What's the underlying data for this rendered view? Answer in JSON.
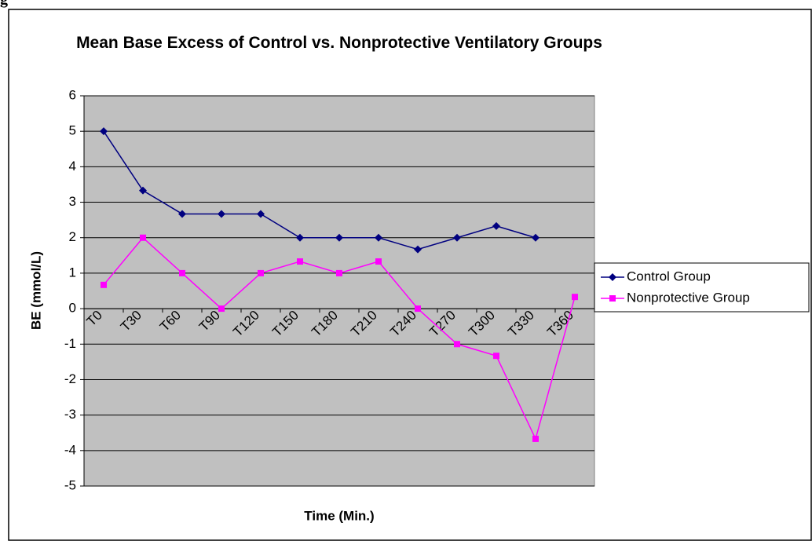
{
  "figure_label": "g",
  "chart_data": {
    "type": "line",
    "title": "Mean Base Excess of Control vs. Nonprotective Ventilatory Groups",
    "xlabel": "Time (Min.)",
    "ylabel": "BE (mmol/L)",
    "categories": [
      "T0",
      "T30",
      "T60",
      "T90",
      "T120",
      "T150",
      "T180",
      "T210",
      "T240",
      "T270",
      "T300",
      "T330",
      "T360"
    ],
    "series": [
      {
        "name": "Control Group",
        "color": "#000080",
        "marker": "diamond",
        "values": [
          5,
          3.33,
          2.67,
          2.67,
          2.67,
          2,
          2,
          2,
          1.67,
          2,
          2.33,
          2,
          null
        ]
      },
      {
        "name": "Nonprotective Group",
        "color": "#ff00ff",
        "marker": "square",
        "values": [
          0.67,
          2,
          1,
          0,
          1,
          1.33,
          1,
          1.33,
          0,
          -1,
          -1.33,
          -3.67,
          0.33
        ]
      }
    ],
    "ylim": [
      -5,
      6
    ],
    "yticks": [
      -5,
      -4,
      -3,
      -2,
      -1,
      0,
      1,
      2,
      3,
      4,
      5,
      6
    ],
    "grid": true,
    "legend": "right"
  }
}
